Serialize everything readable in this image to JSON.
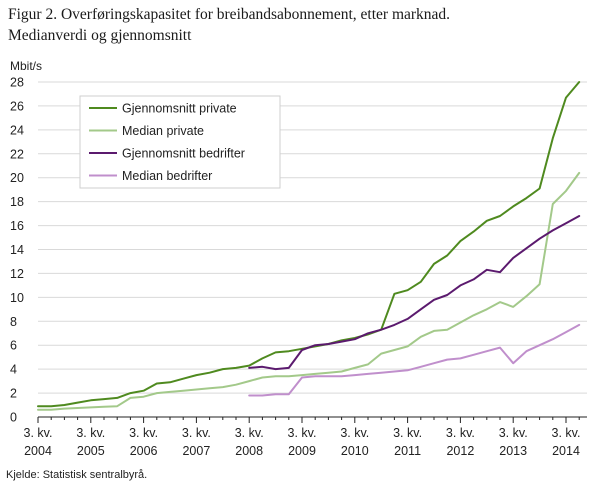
{
  "figure": {
    "title_line1": "Figur 2. Overføringskapasitet for breibandsabonnement, etter marknad.",
    "title_line2": "Medianverdi og gjennomsnitt",
    "source": "Kjelde: Statistisk sentralbyrå."
  },
  "chart_data": {
    "type": "line",
    "title": "Figur 2. Overføringskapasitet for breibandsabonnement, etter marknad. Medianverdi og gjennomsnitt",
    "ylabel": "Mbit/s",
    "xlabel": "",
    "ylim": [
      0,
      28
    ],
    "yticks": [
      0,
      2,
      4,
      6,
      8,
      10,
      12,
      14,
      16,
      18,
      20,
      22,
      24,
      26,
      28
    ],
    "grid": "horizontal",
    "legend_position": "top-left",
    "x_tick_labels": [
      {
        "q": 0,
        "line1": "3. kv.",
        "line2": "2004"
      },
      {
        "q": 4,
        "line1": "3. kv.",
        "line2": "2005"
      },
      {
        "q": 8,
        "line1": "3. kv.",
        "line2": "2006"
      },
      {
        "q": 12,
        "line1": "3. kv.",
        "line2": "2007"
      },
      {
        "q": 16,
        "line1": "3. kv.",
        "line2": "2008"
      },
      {
        "q": 20,
        "line1": "3. kv.",
        "line2": "2009"
      },
      {
        "q": 24,
        "line1": "3. kv.",
        "line2": "2010"
      },
      {
        "q": 28,
        "line1": "3. kv.",
        "line2": "2011"
      },
      {
        "q": 32,
        "line1": "3. kv.",
        "line2": "2012"
      },
      {
        "q": 36,
        "line1": "3. kv.",
        "line2": "2013"
      },
      {
        "q": 40,
        "line1": "3. kv.",
        "line2": "2014"
      }
    ],
    "x": [
      "2004K3",
      "2004K4",
      "2005K1",
      "2005K2",
      "2005K3",
      "2005K4",
      "2006K1",
      "2006K2",
      "2006K3",
      "2006K4",
      "2007K1",
      "2007K2",
      "2007K3",
      "2007K4",
      "2008K1",
      "2008K2",
      "2008K3",
      "2008K4",
      "2009K1",
      "2009K2",
      "2009K3",
      "2009K4",
      "2010K1",
      "2010K2",
      "2010K3",
      "2010K4",
      "2011K1",
      "2011K2",
      "2011K3",
      "2011K4",
      "2012K1",
      "2012K2",
      "2012K3",
      "2012K4",
      "2013K1",
      "2013K2",
      "2013K3",
      "2013K4",
      "2014K1",
      "2014K2",
      "2014K3",
      "2014K4"
    ],
    "series": [
      {
        "name": "Gjennomsnitt private",
        "color": "#4f8a1f",
        "values": [
          0.9,
          0.9,
          1.0,
          1.2,
          1.4,
          1.5,
          1.6,
          2.0,
          2.2,
          2.8,
          2.9,
          3.2,
          3.5,
          3.7,
          4.0,
          4.1,
          4.3,
          4.9,
          5.4,
          5.5,
          5.7,
          5.9,
          6.1,
          6.4,
          6.6,
          6.9,
          7.3,
          10.3,
          10.6,
          11.3,
          12.8,
          13.5,
          14.7,
          15.5,
          16.4,
          16.8,
          17.6,
          18.3,
          19.1,
          23.3,
          26.7,
          28.0
        ]
      },
      {
        "name": "Median private",
        "color": "#a3c98a",
        "values": [
          0.6,
          0.6,
          0.7,
          0.75,
          0.8,
          0.85,
          0.9,
          1.6,
          1.7,
          2.0,
          2.1,
          2.2,
          2.3,
          2.4,
          2.5,
          2.7,
          3.0,
          3.3,
          3.4,
          3.4,
          3.5,
          3.6,
          3.7,
          3.8,
          4.1,
          4.4,
          5.3,
          5.6,
          5.9,
          6.7,
          7.2,
          7.3,
          7.9,
          8.5,
          9.0,
          9.6,
          9.2,
          10.1,
          11.1,
          17.8,
          18.9,
          20.4
        ]
      },
      {
        "name": "Gjennomsnitt bedrifter",
        "color": "#5b1a6e",
        "values": [
          null,
          null,
          null,
          null,
          null,
          null,
          null,
          null,
          null,
          null,
          null,
          null,
          null,
          null,
          null,
          null,
          4.1,
          4.2,
          4.0,
          4.1,
          5.6,
          6.0,
          6.1,
          6.3,
          6.5,
          7.0,
          7.3,
          7.7,
          8.2,
          9.0,
          9.8,
          10.2,
          11.0,
          11.5,
          12.3,
          12.1,
          13.3,
          14.1,
          14.9,
          15.6,
          16.2,
          16.8
        ]
      },
      {
        "name": "Median bedrifter",
        "color": "#c08fcc",
        "values": [
          null,
          null,
          null,
          null,
          null,
          null,
          null,
          null,
          null,
          null,
          null,
          null,
          null,
          null,
          null,
          null,
          1.8,
          1.8,
          1.9,
          1.9,
          3.3,
          3.4,
          3.4,
          3.4,
          3.5,
          3.6,
          3.7,
          3.8,
          3.9,
          4.2,
          4.5,
          4.8,
          4.9,
          5.2,
          5.5,
          5.8,
          4.5,
          5.5,
          6.0,
          6.5,
          7.1,
          7.7
        ]
      }
    ]
  }
}
